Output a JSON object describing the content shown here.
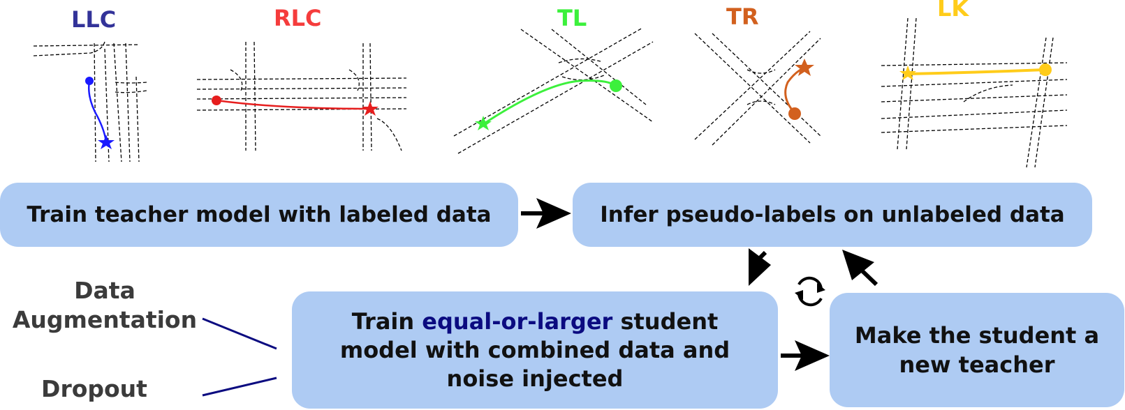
{
  "scenarios": [
    {
      "label": "LLC",
      "color": "#333399"
    },
    {
      "label": "RLC",
      "color": "#f53c3c"
    },
    {
      "label": "TL",
      "color": "#3cf03c"
    },
    {
      "label": "TR",
      "color": "#d2601e"
    },
    {
      "label": "LK",
      "color": "#ffcc1a"
    }
  ],
  "boxes": {
    "train_teacher": "Train teacher model with labeled data",
    "infer_pseudo": "Infer pseudo-labels on unlabeled data",
    "train_student_prefix": "Train ",
    "train_student_highlight": "equal-or-larger",
    "train_student_suffix": " student",
    "train_student_line2": "model with combined data and",
    "train_student_line3": "noise injected",
    "make_teacher_line1": "Make the student a",
    "make_teacher_line2": "new teacher"
  },
  "noise_sources": {
    "data_aug_line1": "Data",
    "data_aug_line2": "Augmentation",
    "dropout": "Dropout"
  },
  "colors": {
    "box_fill": "#aecbf3",
    "highlight_text": "#0b0b80",
    "connector_line": "#0b0b80",
    "label_gray": "#3b3b3b",
    "arrow": "#000000"
  },
  "icons": [
    "refresh-cycle-icon",
    "arrow-icon"
  ]
}
